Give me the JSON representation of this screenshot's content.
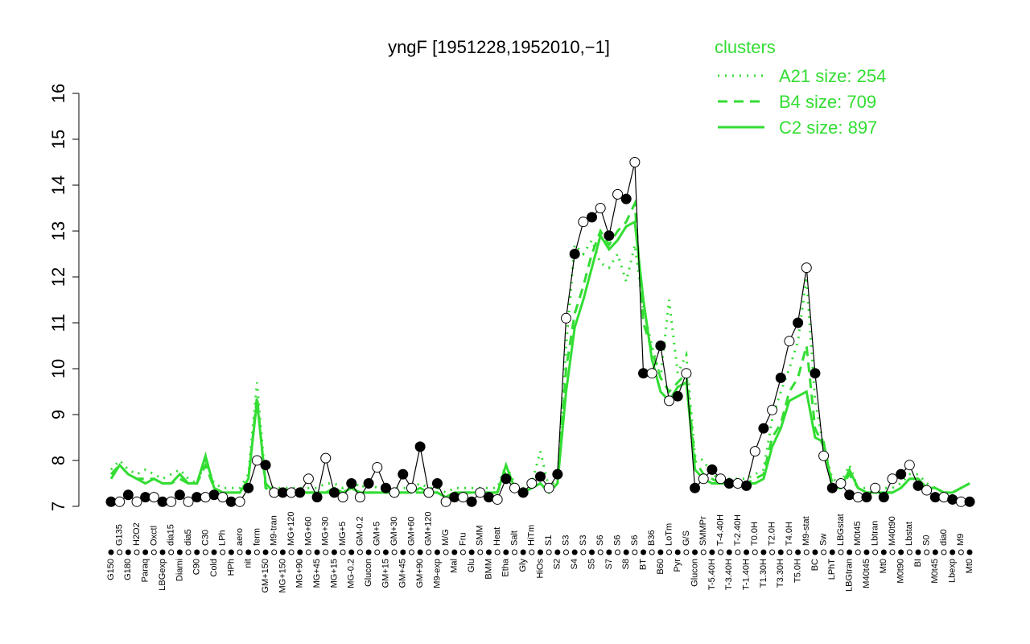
{
  "chart_data": {
    "type": "line",
    "title": "yngF [1951228,1952010,−1]",
    "legend_title": "clusters",
    "legend_position": "top-right",
    "categories": [
      "G150",
      "G135",
      "G180",
      "H2O2",
      "Paraq",
      "Oxctl",
      "LBGexp",
      "dia15",
      "Diami",
      "dia5",
      "C90",
      "C30",
      "Cold",
      "LPh",
      "HPh",
      "aero",
      "nit",
      "ferm",
      "GM+150",
      "M9-tran",
      "MG+150",
      "MG+120",
      "MG+90",
      "MG+60",
      "MG+45",
      "MG+30",
      "MG+15",
      "MG+5",
      "MG-0.2",
      "GM-0.2",
      "Glucon",
      "GM+5",
      "GM+15",
      "GM+30",
      "GM+45",
      "GM+60",
      "GM+90",
      "GM+120",
      "M9-exp",
      "M/G",
      "Mal",
      "Fru",
      "Glu",
      "SMM",
      "BMM",
      "Heat",
      "Etha",
      "Salt",
      "Gly",
      "HiTm",
      "HiOs",
      "S1",
      "S2",
      "S3",
      "S4",
      "S3",
      "S5",
      "S6",
      "S7",
      "S6",
      "S8",
      "S6",
      "BT",
      "B36",
      "B60",
      "LoTm",
      "Pyr",
      "G/S",
      "Glucon",
      "SMMPr",
      "T-5.40H",
      "T-4.40H",
      "T-3.40H",
      "T-2.40H",
      "T-1.40H",
      "T0.0H",
      "T1.30H",
      "T2.0H",
      "T3.30H",
      "T4.0H",
      "T5.0H",
      "M9-stat",
      "BC",
      "Sw",
      "LPhT",
      "LBGstat",
      "LBGtran",
      "M0t45",
      "M40t45",
      "Lbtran",
      "Mt0",
      "M40t90",
      "M0t90",
      "Lbstat",
      "BI",
      "S0",
      "M0t45",
      "dia0",
      "Lbexp",
      "M9",
      "Mt0"
    ],
    "values": [
      7.1,
      7.1,
      7.25,
      7.1,
      7.2,
      7.2,
      7.1,
      7.1,
      7.25,
      7.1,
      7.2,
      7.2,
      7.25,
      7.2,
      7.1,
      7.1,
      7.4,
      8.0,
      7.9,
      7.3,
      7.3,
      7.3,
      7.3,
      7.6,
      7.2,
      8.05,
      7.3,
      7.2,
      7.5,
      7.2,
      7.5,
      7.85,
      7.4,
      7.3,
      7.7,
      7.4,
      8.3,
      7.3,
      7.5,
      7.1,
      7.2,
      7.2,
      7.1,
      7.3,
      7.2,
      7.15,
      7.6,
      7.4,
      7.3,
      7.5,
      7.65,
      7.4,
      7.7,
      11.1,
      12.5,
      13.2,
      13.3,
      13.5,
      12.9,
      13.8,
      13.7,
      14.5,
      9.9,
      9.9,
      10.5,
      9.3,
      9.4,
      9.9,
      7.4,
      7.6,
      7.8,
      7.6,
      7.5,
      7.5,
      7.45,
      8.2,
      8.7,
      9.1,
      9.8,
      10.6,
      11.0,
      12.2,
      9.9,
      8.1,
      7.4,
      7.5,
      7.25,
      7.2,
      7.2,
      7.4,
      7.2,
      7.6,
      7.7,
      7.9,
      7.45,
      7.35,
      7.2,
      7.2,
      7.15,
      7.1,
      7.1
    ],
    "color": "#000000",
    "series": [
      {
        "name": "A21 size: 254",
        "color": "#33dd33",
        "dash": "dotted",
        "values": [
          7.8,
          8.0,
          7.8,
          7.7,
          7.8,
          7.7,
          7.6,
          7.7,
          7.8,
          7.6,
          7.5,
          8.0,
          7.5,
          7.4,
          7.4,
          7.4,
          7.7,
          9.7,
          7.5,
          7.4,
          7.4,
          7.4,
          7.4,
          7.4,
          7.4,
          7.5,
          7.5,
          7.4,
          7.6,
          7.4,
          7.5,
          7.4,
          7.4,
          7.4,
          7.4,
          7.4,
          7.5,
          7.4,
          7.4,
          7.3,
          7.4,
          7.4,
          7.4,
          7.4,
          7.4,
          7.4,
          7.9,
          7.5,
          7.4,
          7.5,
          8.2,
          7.4,
          7.6,
          10.5,
          12.7,
          12.5,
          12.8,
          12.3,
          12.2,
          12.5,
          11.9,
          12.7,
          11.3,
          10.5,
          9.8,
          11.5,
          9.9,
          10.3,
          8.1,
          8.0,
          7.7,
          7.6,
          7.6,
          7.6,
          7.6,
          7.7,
          7.8,
          8.9,
          9.5,
          10.0,
          10.6,
          12.0,
          9.3,
          8.3,
          7.6,
          7.5,
          7.9,
          7.4,
          7.4,
          7.4,
          7.4,
          7.4,
          7.5,
          7.7,
          7.7,
          7.5,
          7.4,
          7.3,
          7.3,
          7.4,
          7.5
        ]
      },
      {
        "name": "B4 size: 709",
        "color": "#33dd33",
        "dash": "dashed",
        "values": [
          7.7,
          7.9,
          7.7,
          7.6,
          7.6,
          7.6,
          7.5,
          7.5,
          7.6,
          7.5,
          7.5,
          7.9,
          7.4,
          7.3,
          7.3,
          7.3,
          7.6,
          9.4,
          7.4,
          7.3,
          7.3,
          7.3,
          7.3,
          7.3,
          7.3,
          7.3,
          7.3,
          7.3,
          7.4,
          7.3,
          7.3,
          7.3,
          7.3,
          7.3,
          7.3,
          7.3,
          7.3,
          7.3,
          7.3,
          7.2,
          7.3,
          7.3,
          7.3,
          7.3,
          7.3,
          7.3,
          7.8,
          7.4,
          7.3,
          7.4,
          7.5,
          7.3,
          7.5,
          10.0,
          11.2,
          11.8,
          12.5,
          13.0,
          12.7,
          13.0,
          13.2,
          13.6,
          11.0,
          10.4,
          9.8,
          9.5,
          9.7,
          9.9,
          8.0,
          7.7,
          7.6,
          7.5,
          7.5,
          7.5,
          7.5,
          7.6,
          7.7,
          8.5,
          8.8,
          9.5,
          9.8,
          10.5,
          8.7,
          8.3,
          7.5,
          7.4,
          7.7,
          7.4,
          7.3,
          7.3,
          7.3,
          7.3,
          7.4,
          7.6,
          7.6,
          7.4,
          7.4,
          7.3,
          7.3,
          7.4,
          7.5
        ]
      },
      {
        "name": "C2 size: 897",
        "color": "#33dd33",
        "dash": "solid",
        "values": [
          7.6,
          7.9,
          7.7,
          7.6,
          7.5,
          7.6,
          7.5,
          7.5,
          7.7,
          7.5,
          7.5,
          8.1,
          7.4,
          7.3,
          7.3,
          7.3,
          7.6,
          9.3,
          7.5,
          7.3,
          7.3,
          7.3,
          7.3,
          7.3,
          7.3,
          7.3,
          7.4,
          7.3,
          7.4,
          7.3,
          7.3,
          7.3,
          7.3,
          7.3,
          7.3,
          7.3,
          7.4,
          7.3,
          7.3,
          7.2,
          7.3,
          7.3,
          7.3,
          7.3,
          7.3,
          7.3,
          7.9,
          7.4,
          7.3,
          7.4,
          7.5,
          7.3,
          7.5,
          9.5,
          10.9,
          11.5,
          12.2,
          12.9,
          12.6,
          12.8,
          13.1,
          13.2,
          11.5,
          10.2,
          9.5,
          9.3,
          9.6,
          9.7,
          7.8,
          7.6,
          7.5,
          7.5,
          7.5,
          7.5,
          7.5,
          7.5,
          7.6,
          8.3,
          8.7,
          9.3,
          9.4,
          9.5,
          8.5,
          8.4,
          7.4,
          7.4,
          7.8,
          7.4,
          7.3,
          7.3,
          7.3,
          7.3,
          7.4,
          7.6,
          7.6,
          7.4,
          7.4,
          7.3,
          7.3,
          7.4,
          7.5
        ]
      }
    ],
    "ylim": [
      7,
      16
    ],
    "yticks": [
      7,
      8,
      9,
      10,
      11,
      12,
      13,
      14,
      15,
      16
    ],
    "grid": false
  }
}
